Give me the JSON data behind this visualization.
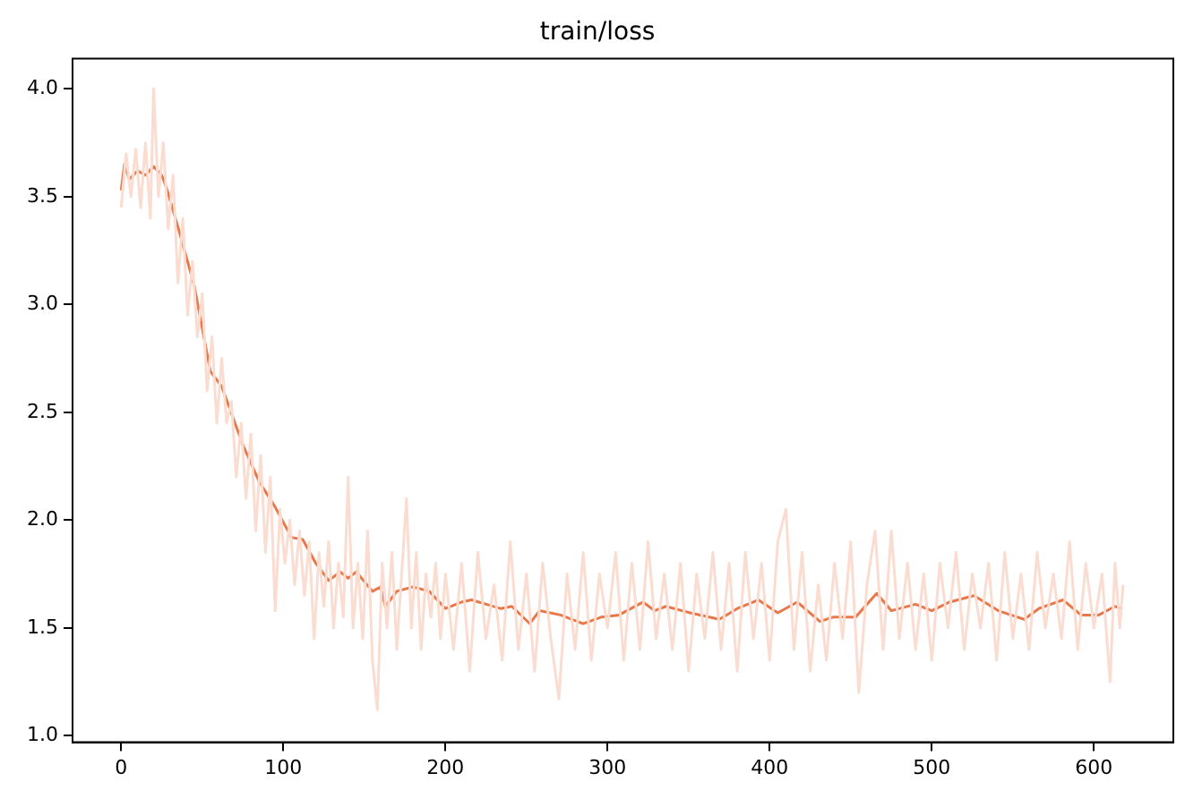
{
  "chart_data": {
    "type": "line",
    "title": "train/loss",
    "xlim": [
      -30,
      649
    ],
    "ylim": [
      0.97,
      4.14
    ],
    "xticks": [
      0,
      100,
      200,
      300,
      400,
      500,
      600
    ],
    "yticks": [
      {
        "value": 1,
        "label": "1.0"
      },
      1.5,
      {
        "value": 2,
        "label": "2.0"
      },
      2.5,
      {
        "value": 3,
        "label": "3.0"
      },
      3.5,
      {
        "value": 4,
        "label": "4.0"
      }
    ],
    "grid": false,
    "legend": false,
    "marker": "none",
    "line_style": "solid",
    "series": [
      {
        "color": "#fadcd0",
        "x": [
          0,
          3,
          6,
          9,
          12,
          15,
          18,
          20,
          23,
          26,
          29,
          32,
          35,
          38,
          41,
          44,
          47,
          50,
          53,
          56,
          59,
          62,
          65,
          68,
          71,
          74,
          77,
          80,
          83,
          86,
          89,
          92,
          95,
          98,
          101,
          104,
          107,
          110,
          113,
          116,
          119,
          122,
          125,
          128,
          131,
          134,
          137,
          140,
          143,
          146,
          149,
          152,
          155,
          158,
          161,
          164,
          167,
          170,
          173,
          176,
          179,
          182,
          185,
          188,
          191,
          194,
          197,
          200,
          205,
          210,
          215,
          220,
          225,
          230,
          235,
          240,
          245,
          250,
          255,
          260,
          265,
          270,
          275,
          280,
          285,
          290,
          295,
          300,
          305,
          310,
          315,
          320,
          325,
          330,
          335,
          340,
          345,
          350,
          355,
          360,
          365,
          370,
          375,
          380,
          385,
          390,
          395,
          400,
          405,
          410,
          415,
          420,
          425,
          430,
          435,
          440,
          445,
          450,
          455,
          460,
          465,
          470,
          475,
          480,
          485,
          490,
          495,
          500,
          505,
          510,
          515,
          520,
          525,
          530,
          535,
          540,
          545,
          550,
          555,
          560,
          565,
          570,
          575,
          580,
          585,
          590,
          595,
          600,
          605,
          610,
          613,
          616,
          618
        ],
        "values": [
          3.45,
          3.7,
          3.5,
          3.72,
          3.45,
          3.75,
          3.4,
          4.0,
          3.5,
          3.75,
          3.35,
          3.6,
          3.1,
          3.4,
          2.95,
          3.2,
          2.85,
          3.05,
          2.6,
          2.85,
          2.45,
          2.75,
          2.45,
          2.55,
          2.2,
          2.45,
          2.1,
          2.4,
          1.95,
          2.3,
          1.85,
          2.2,
          1.58,
          2.05,
          1.8,
          2.0,
          1.7,
          1.95,
          1.65,
          1.9,
          1.45,
          1.85,
          1.6,
          1.9,
          1.5,
          1.8,
          1.55,
          2.2,
          1.5,
          1.8,
          1.45,
          1.95,
          1.35,
          1.12,
          1.8,
          1.5,
          1.85,
          1.4,
          1.75,
          2.1,
          1.5,
          1.85,
          1.4,
          1.75,
          1.55,
          1.8,
          1.45,
          1.75,
          1.4,
          1.8,
          1.3,
          1.85,
          1.45,
          1.7,
          1.35,
          1.9,
          1.4,
          1.75,
          1.3,
          1.8,
          1.45,
          1.17,
          1.75,
          1.4,
          1.85,
          1.35,
          1.75,
          1.5,
          1.85,
          1.35,
          1.8,
          1.4,
          1.9,
          1.45,
          1.75,
          1.4,
          1.8,
          1.3,
          1.75,
          1.45,
          1.85,
          1.4,
          1.8,
          1.3,
          1.85,
          1.45,
          1.8,
          1.35,
          1.9,
          2.05,
          1.4,
          1.85,
          1.3,
          1.7,
          1.35,
          1.8,
          1.45,
          1.9,
          1.2,
          1.7,
          1.95,
          1.4,
          1.95,
          1.45,
          1.8,
          1.4,
          1.75,
          1.35,
          1.8,
          1.5,
          1.85,
          1.4,
          1.75,
          1.5,
          1.8,
          1.35,
          1.85,
          1.45,
          1.75,
          1.4,
          1.85,
          1.5,
          1.75,
          1.45,
          1.9,
          1.4,
          1.8,
          1.5,
          1.75,
          1.25,
          1.8,
          1.5,
          1.7
        ]
      },
      {
        "color": "#e8784a",
        "x": [
          0,
          2,
          5,
          10,
          15,
          20,
          25,
          28,
          35,
          45,
          55,
          62,
          75,
          85,
          95,
          105,
          112,
          120,
          128,
          135,
          140,
          145,
          155,
          160,
          163,
          170,
          180,
          190,
          200,
          210,
          216,
          234,
          241,
          252,
          258,
          271,
          285,
          296,
          307,
          322,
          329,
          336,
          351,
          369,
          380,
          393,
          405,
          417,
          431,
          439,
          453,
          466,
          475,
          490,
          500,
          511,
          526,
          541,
          557,
          566,
          581,
          592,
          603,
          613,
          617
        ],
        "values": [
          3.53,
          3.65,
          3.58,
          3.62,
          3.6,
          3.64,
          3.6,
          3.54,
          3.36,
          3.09,
          2.69,
          2.62,
          2.35,
          2.18,
          2.06,
          1.92,
          1.91,
          1.8,
          1.72,
          1.76,
          1.73,
          1.76,
          1.67,
          1.69,
          1.6,
          1.67,
          1.69,
          1.67,
          1.59,
          1.62,
          1.63,
          1.59,
          1.6,
          1.52,
          1.58,
          1.56,
          1.52,
          1.55,
          1.56,
          1.62,
          1.58,
          1.6,
          1.57,
          1.54,
          1.59,
          1.63,
          1.57,
          1.62,
          1.53,
          1.55,
          1.55,
          1.66,
          1.58,
          1.61,
          1.58,
          1.62,
          1.65,
          1.58,
          1.54,
          1.59,
          1.63,
          1.56,
          1.56,
          1.6,
          1.59
        ]
      }
    ]
  }
}
